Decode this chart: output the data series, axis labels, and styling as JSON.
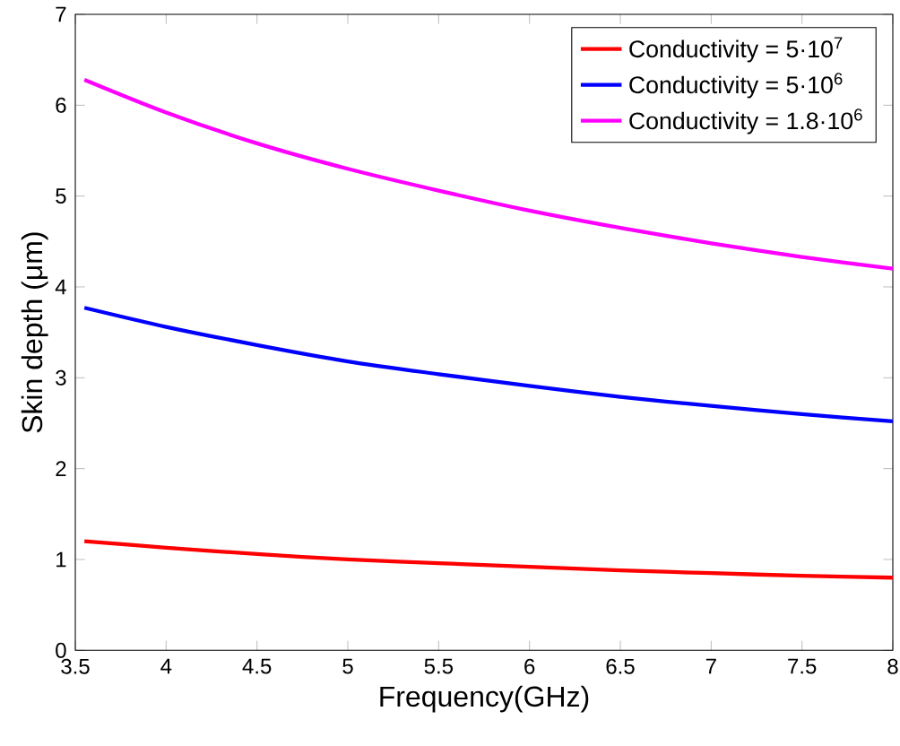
{
  "chart_data": {
    "type": "line",
    "xlabel": "Frequency(GHz)",
    "ylabel": "Skin depth (μm)",
    "x": [
      3.55,
      4,
      4.5,
      5,
      5.5,
      6,
      6.5,
      7,
      7.5,
      8
    ],
    "series": [
      {
        "name": "Conductivity = 5·10$^{7}$",
        "color": "#ff0000",
        "values": [
          1.2,
          1.13,
          1.06,
          1.0,
          0.96,
          0.92,
          0.88,
          0.85,
          0.82,
          0.8
        ]
      },
      {
        "name": "Conductivity = 5·10$^{6}$",
        "color": "#0000ff",
        "values": [
          3.77,
          3.56,
          3.36,
          3.18,
          3.04,
          2.91,
          2.79,
          2.69,
          2.6,
          2.52
        ]
      },
      {
        "name": "Conductivity = 1.8·10$^{6}$",
        "color": "#ff00ff",
        "values": [
          6.28,
          5.92,
          5.58,
          5.3,
          5.06,
          4.84,
          4.65,
          4.48,
          4.33,
          4.2
        ]
      }
    ],
    "xlim": [
      3.5,
      8
    ],
    "ylim": [
      0,
      7
    ],
    "xticks": [
      3.5,
      4,
      4.5,
      5,
      5.5,
      6,
      6.5,
      7,
      7.5,
      8
    ],
    "yticks": [
      0,
      1,
      2,
      3,
      4,
      5,
      6,
      7
    ],
    "grid": false,
    "legend": "top right",
    "marker": "none",
    "line_style": "solid"
  }
}
